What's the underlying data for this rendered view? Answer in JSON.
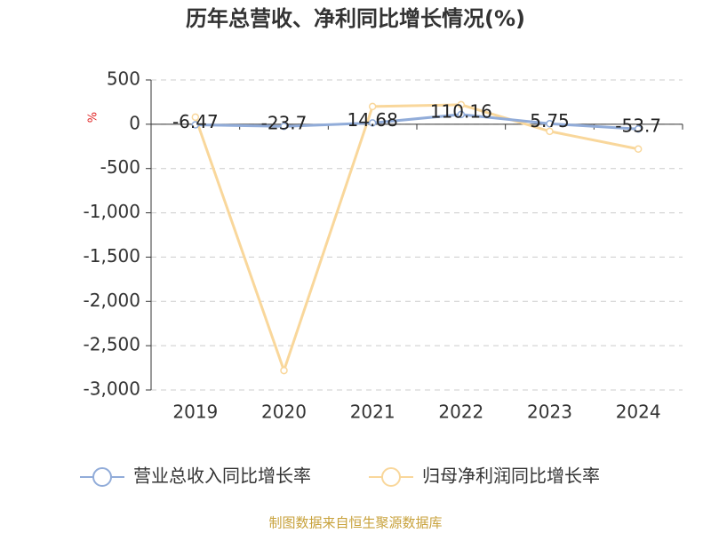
{
  "chart_data": {
    "type": "line",
    "title": "历年总营收、净利同比增长情况(%)",
    "y_unit": "%",
    "categories": [
      "2019",
      "2020",
      "2021",
      "2022",
      "2023",
      "2024"
    ],
    "series": [
      {
        "name": "营业总收入同比增长率",
        "color": "#91acd9",
        "values": [
          -6.47,
          -23.7,
          14.68,
          110.16,
          5.75,
          -53.7
        ],
        "labels": true
      },
      {
        "name": "归母净利润同比增长率",
        "color": "#f9d79b",
        "values": [
          80,
          -2780,
          200,
          220,
          -80,
          -280
        ],
        "labels": false
      }
    ],
    "ylim": [
      -3000,
      500
    ],
    "yticks": [
      500,
      0,
      -500,
      {
        "value": -1000,
        "label": "-1,000"
      },
      {
        "value": -1500,
        "label": "-1,500"
      },
      {
        "value": -2000,
        "label": "-2,000"
      },
      {
        "value": -2500,
        "label": "-2,500"
      },
      {
        "value": -3000,
        "label": "-3,000"
      }
    ],
    "grid": true,
    "legend": "bottom",
    "source": "制图数据来自恒生聚源数据库"
  }
}
